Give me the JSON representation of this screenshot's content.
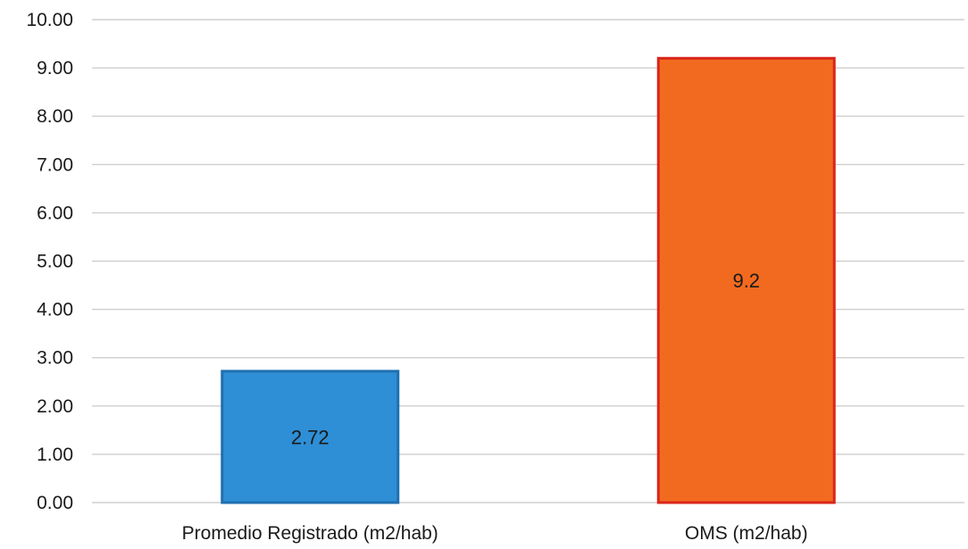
{
  "chart_data": {
    "type": "bar",
    "categories": [
      "Promedio Registrado (m2/hab)",
      "OMS (m2/hab)"
    ],
    "values": [
      2.72,
      9.2
    ],
    "data_labels": [
      "2.72",
      "9.2"
    ],
    "title": "",
    "xlabel": "",
    "ylabel": "",
    "ylim": [
      0,
      10
    ],
    "yticks": [
      "0.00",
      "1.00",
      "2.00",
      "3.00",
      "4.00",
      "5.00",
      "6.00",
      "7.00",
      "8.00",
      "9.00",
      "10.00"
    ],
    "grid": true,
    "legend": "none",
    "colors": {
      "fills": [
        "#2e8fd6",
        "#f26a1f"
      ],
      "strokes": [
        "#1f6fb0",
        "#d9261b"
      ]
    }
  }
}
